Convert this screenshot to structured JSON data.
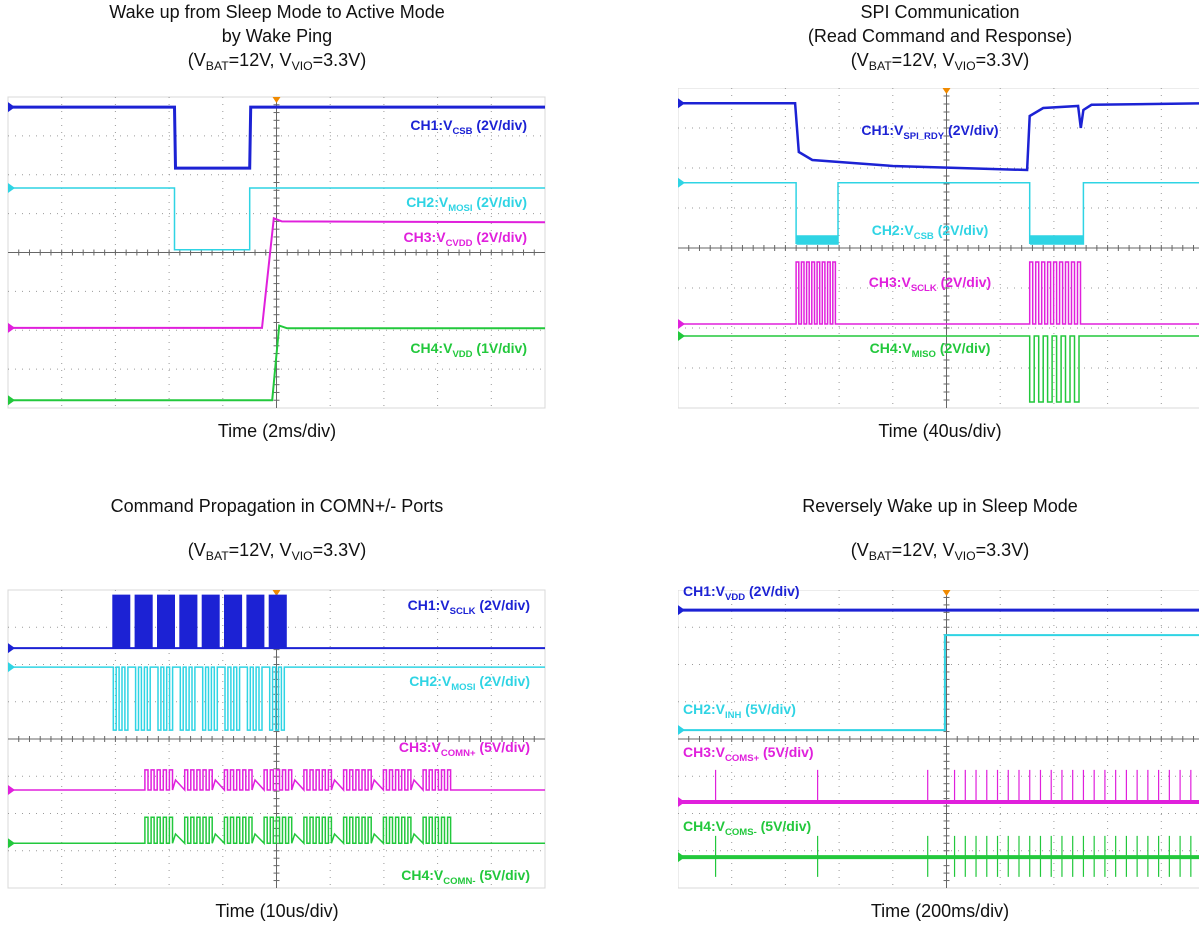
{
  "panels": [
    {
      "title_lines": [
        "Wake up from Sleep Mode to Active Mode",
        "by Wake Ping"
      ],
      "conditions": [
        "(V",
        "BAT",
        "=12V, V",
        "VIO",
        "=3.3V)"
      ],
      "channels": [
        [
          "CH1:V",
          "CSB",
          " (2V/div)"
        ],
        [
          "CH2:V",
          "MOSI",
          " (2V/div)"
        ],
        [
          "CH3:V",
          "CVDD",
          " (2V/div)"
        ],
        [
          "CH4:V",
          "VDD",
          " (1V/div)"
        ]
      ],
      "time_axis": "Time (2ms/div)"
    },
    {
      "title_lines": [
        "SPI Communication",
        "(Read Command and Response)"
      ],
      "conditions": [
        "(V",
        "BAT",
        "=12V, V",
        "VIO",
        "=3.3V)"
      ],
      "channels": [
        [
          "CH1:V",
          "SPI_RDY",
          " (2V/div)"
        ],
        [
          "CH2:V",
          "CSB",
          " (2V/div)"
        ],
        [
          "CH3:V",
          "SCLK",
          " (2V/div)"
        ],
        [
          "CH4:V",
          "MISO",
          " (2V/div)"
        ]
      ],
      "time_axis": "Time (40us/div)"
    },
    {
      "title_lines": [
        "Command Propagation in COMN+/- Ports"
      ],
      "conditions": [
        "(V",
        "BAT",
        "=12V, V",
        "VIO",
        "=3.3V)"
      ],
      "channels": [
        [
          "CH1:V",
          "SCLK",
          " (2V/div)"
        ],
        [
          "CH2:V",
          "MOSI",
          " (2V/div)"
        ],
        [
          "CH3:V",
          "COMN+",
          " (5V/div)"
        ],
        [
          "CH4:V",
          "COMN-",
          " (5V/div)"
        ]
      ],
      "time_axis": "Time (10us/div)"
    },
    {
      "title_lines": [
        "Reversely Wake up in Sleep Mode"
      ],
      "conditions": [
        "(V",
        "BAT",
        "=12V, V",
        "VIO",
        "=3.3V)"
      ],
      "channels": [
        [
          "CH1:V",
          "VDD",
          " (2V/div)"
        ],
        [
          "CH2:V",
          "INH",
          " (5V/div)"
        ],
        [
          "CH3:V",
          "COMS+",
          " (5V/div)"
        ],
        [
          "CH4:V",
          "COMS-",
          " (5V/div)"
        ]
      ],
      "time_axis": "Time (200ms/div)"
    }
  ]
}
